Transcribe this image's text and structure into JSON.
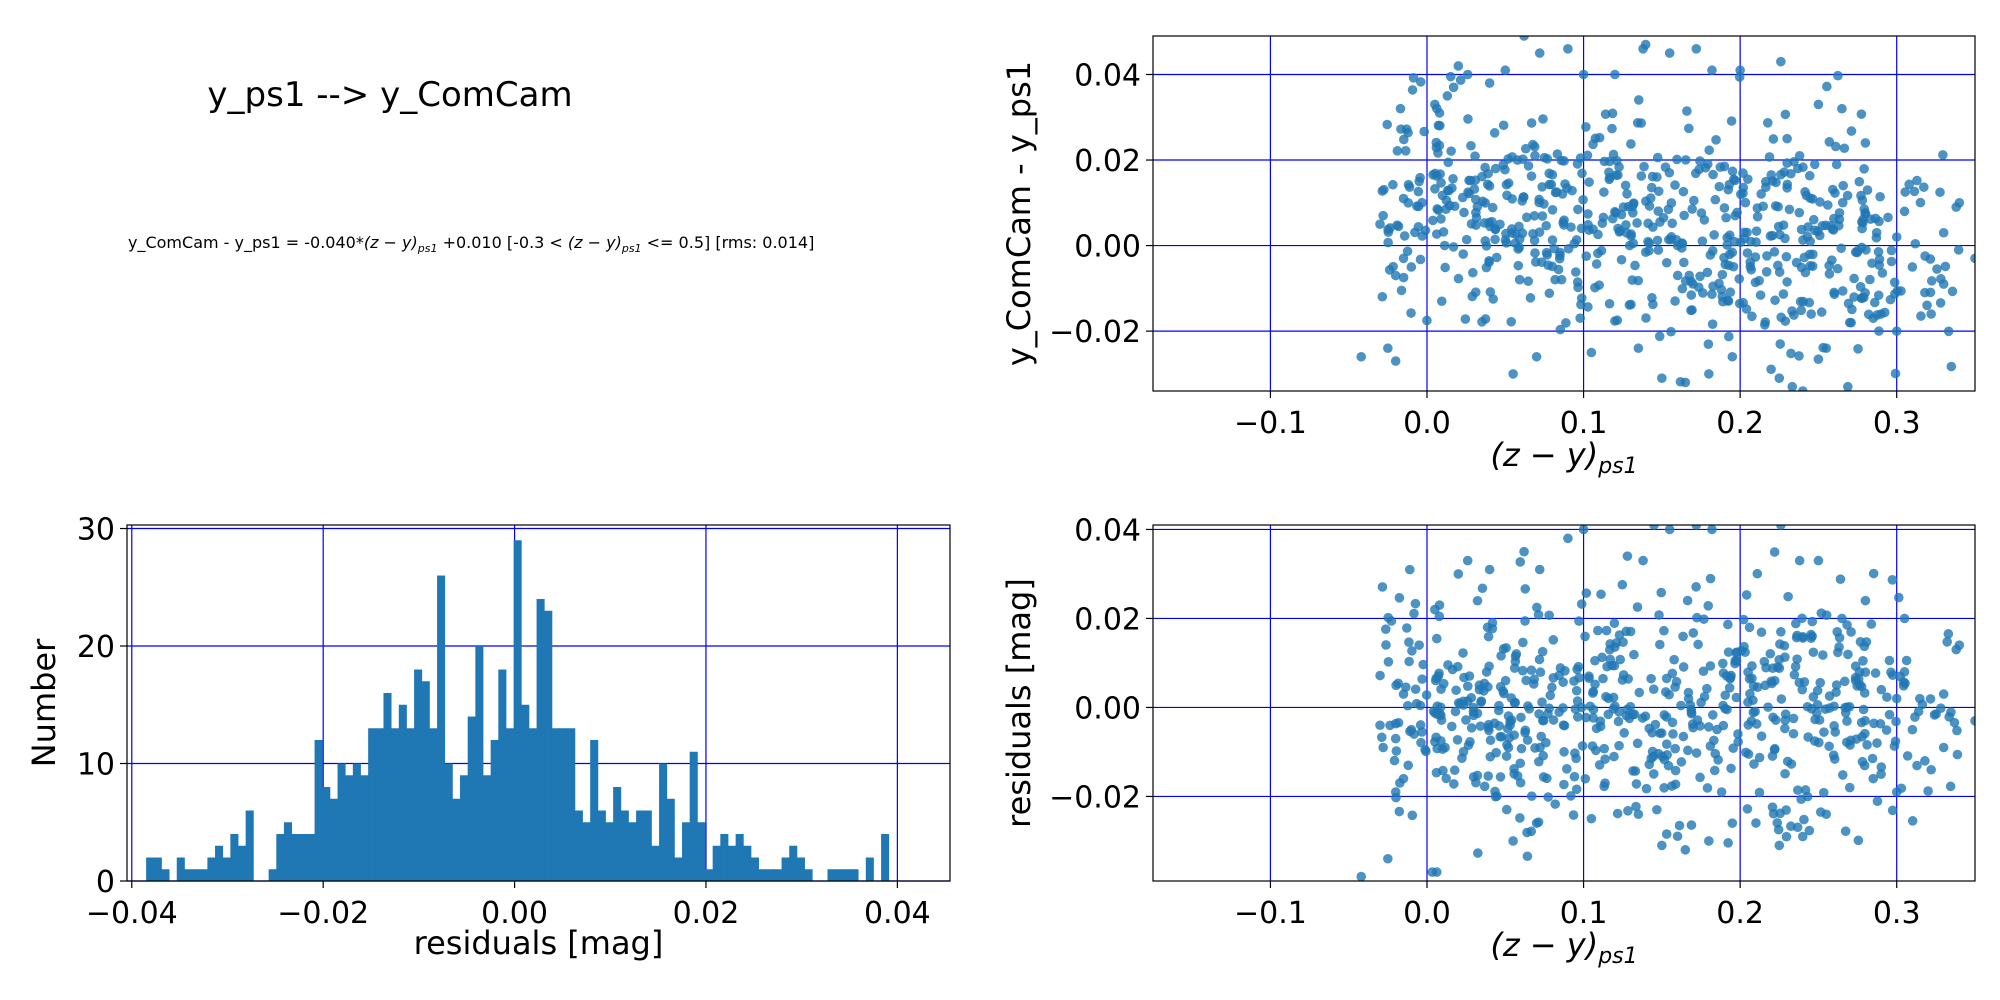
{
  "figure_title": "y_ps1 --> y_ComCam",
  "equation": {
    "lhs": "y_ComCam - y_ps1 = -0.040*",
    "color_term": "(z − y)",
    "color_sub": "ps1",
    "mid": " +0.010  [-0.3 < ",
    "color_term_2": "(z − y)",
    "color_sub_2": "ps1",
    "rhs": " <= 0.5]  [rms: 0.014]"
  },
  "colors": {
    "bar": "#1f77b4",
    "point": "#1f77b4",
    "grid": "#0000ff",
    "axis": "#000000"
  },
  "chart_data": [
    {
      "id": "color-scatter",
      "type": "scatter",
      "title": "",
      "xlabel_main": "(z − y)",
      "xlabel_sub": "ps1",
      "ylabel": "y_ComCam - y_ps1",
      "xlim": [
        -0.175,
        0.35
      ],
      "ylim": [
        -0.034,
        0.049
      ],
      "xticks": [
        -0.1,
        0.0,
        0.1,
        0.2,
        0.3
      ],
      "xtick_labels": [
        "−0.1",
        "0.0",
        "0.1",
        "0.2",
        "0.3"
      ],
      "yticks": [
        -0.02,
        0.0,
        0.02,
        0.04
      ],
      "ytick_labels": [
        "−0.02",
        "0.00",
        "0.02",
        "0.04"
      ],
      "grid": true,
      "n_points": 700,
      "points": [
        [
          -0.042,
          -0.026
        ],
        [
          -0.025,
          -0.024
        ],
        [
          -0.02,
          -0.027
        ],
        [
          -0.03,
          0.005
        ],
        [
          -0.028,
          0.007
        ],
        [
          -0.02,
          -0.007
        ],
        [
          -0.015,
          -0.003
        ],
        [
          -0.01,
          -0.005
        ],
        [
          -0.012,
          0.01
        ],
        [
          -0.005,
          0.015
        ],
        [
          0.005,
          0.033
        ],
        [
          0.008,
          0.031
        ],
        [
          0.013,
          0.035
        ],
        [
          0.017,
          0.037
        ],
        [
          0.02,
          0.042
        ],
        [
          0.026,
          0.04
        ],
        [
          0.04,
          0.038
        ],
        [
          0.05,
          0.041
        ],
        [
          0.062,
          0.049
        ],
        [
          0.072,
          0.045
        ],
        [
          0.09,
          0.046
        ],
        [
          0.1,
          0.04
        ],
        [
          0.12,
          0.04
        ],
        [
          0.138,
          0.046
        ],
        [
          0.155,
          0.045
        ],
        [
          0.172,
          0.046
        ],
        [
          0.182,
          0.041
        ],
        [
          0.2,
          0.041
        ],
        [
          0.226,
          0.043
        ],
        [
          0.055,
          -0.03
        ],
        [
          0.07,
          -0.026
        ],
        [
          0.105,
          -0.025
        ],
        [
          0.135,
          -0.024
        ],
        [
          0.15,
          -0.031
        ],
        [
          0.165,
          -0.032
        ],
        [
          0.18,
          -0.03
        ],
        [
          0.195,
          -0.026
        ],
        [
          0.225,
          -0.031
        ],
        [
          0.24,
          -0.034
        ],
        [
          0.255,
          -0.024
        ],
        [
          0.27,
          -0.018
        ],
        [
          0.285,
          -0.017
        ],
        [
          0.29,
          -0.016
        ],
        [
          0.3,
          0.002
        ],
        [
          0.305,
          0.008
        ],
        [
          0.31,
          -0.005
        ],
        [
          0.318,
          -0.011
        ],
        [
          0.322,
          -0.016
        ],
        [
          0.33,
          -0.009
        ],
        [
          0.338,
          0.009
        ],
        [
          0.34,
          0.01
        ],
        [
          0.35,
          -0.003
        ],
        [
          0.33,
          0.003
        ],
        [
          0.3,
          -0.02
        ],
        [
          0.28,
          0.024
        ],
        [
          0.265,
          0.032
        ],
        [
          0.25,
          0.033
        ],
        [
          0.238,
          0.021
        ],
        [
          0.23,
          0.025
        ],
        [
          -0.015,
          0.011
        ]
      ]
    },
    {
      "id": "residual-histogram",
      "type": "bar",
      "title": "",
      "xlabel": "residuals [mag]",
      "ylabel": "Number",
      "xlim": [
        -0.0405,
        0.0455
      ],
      "ylim": [
        0,
        30.3
      ],
      "xticks": [
        -0.04,
        -0.02,
        0.0,
        0.02,
        0.04
      ],
      "xtick_labels": [
        "−0.04",
        "−0.02",
        "0.00",
        "0.02",
        "0.04"
      ],
      "yticks": [
        0,
        10,
        20,
        30
      ],
      "ytick_labels": [
        "0",
        "10",
        "20",
        "30"
      ],
      "grid": true,
      "bin_start": -0.0385,
      "bin_width": 0.0008,
      "counts": [
        2,
        2,
        1,
        0,
        2,
        1,
        1,
        1,
        2,
        3,
        2,
        4,
        3,
        6,
        0,
        0,
        1,
        4,
        5,
        4,
        4,
        4,
        12,
        8,
        7,
        10,
        9,
        10,
        9,
        13,
        13,
        16,
        13,
        15,
        13,
        18,
        17,
        13,
        26,
        10,
        7,
        9,
        14,
        20,
        9,
        12,
        18,
        13,
        29,
        15,
        13,
        24,
        23,
        13,
        13,
        13,
        6,
        5,
        12,
        6,
        5,
        8,
        6,
        5,
        6,
        6,
        3,
        10,
        7,
        2,
        5,
        11,
        5,
        1,
        3,
        4,
        3,
        4,
        3,
        2,
        1,
        1,
        1,
        2,
        3,
        2,
        1,
        0,
        0,
        1,
        1,
        1,
        1,
        0,
        2,
        0,
        4
      ]
    },
    {
      "id": "residual-scatter",
      "type": "scatter",
      "title": "",
      "xlabel_main": "(z − y)",
      "xlabel_sub": "ps1",
      "ylabel": "residuals [mag]",
      "xlim": [
        -0.175,
        0.35
      ],
      "ylim": [
        -0.039,
        0.041
      ],
      "xticks": [
        -0.1,
        0.0,
        0.1,
        0.2,
        0.3
      ],
      "xtick_labels": [
        "−0.1",
        "0.0",
        "0.1",
        "0.2",
        "0.3"
      ],
      "yticks": [
        -0.02,
        0.0,
        0.02,
        0.04
      ],
      "ytick_labels": [
        "−0.02",
        "0.00",
        "0.02",
        "0.04"
      ],
      "grid": true,
      "n_points": 700,
      "points": [
        [
          -0.042,
          -0.038
        ],
        [
          -0.025,
          -0.034
        ],
        [
          -0.02,
          -0.019
        ],
        [
          -0.03,
          -0.004
        ],
        [
          -0.028,
          -0.009
        ],
        [
          -0.02,
          -0.007
        ],
        [
          -0.015,
          0.003
        ],
        [
          -0.01,
          -0.005
        ],
        [
          -0.012,
          -0.013
        ],
        [
          -0.005,
          0.014
        ],
        [
          0.005,
          0.022
        ],
        [
          0.008,
          0.023
        ],
        [
          0.02,
          0.03
        ],
        [
          0.026,
          0.033
        ],
        [
          0.04,
          0.031
        ],
        [
          0.062,
          0.035
        ],
        [
          0.072,
          0.031
        ],
        [
          0.09,
          0.038
        ],
        [
          0.1,
          0.04
        ],
        [
          0.128,
          0.034
        ],
        [
          0.138,
          0.033
        ],
        [
          0.145,
          0.041
        ],
        [
          0.155,
          0.04
        ],
        [
          0.172,
          0.041
        ],
        [
          0.182,
          0.04
        ],
        [
          0.226,
          0.041
        ],
        [
          0.238,
          0.033
        ],
        [
          0.25,
          0.033
        ],
        [
          0.055,
          -0.03
        ],
        [
          0.07,
          -0.026
        ],
        [
          0.105,
          -0.025
        ],
        [
          0.135,
          -0.024
        ],
        [
          0.15,
          -0.031
        ],
        [
          0.165,
          -0.032
        ],
        [
          0.18,
          -0.03
        ],
        [
          0.195,
          -0.026
        ],
        [
          0.225,
          -0.031
        ],
        [
          0.24,
          -0.029
        ],
        [
          0.255,
          -0.024
        ],
        [
          0.27,
          -0.018
        ],
        [
          0.285,
          -0.016
        ],
        [
          0.29,
          -0.015
        ],
        [
          0.3,
          0.002
        ],
        [
          0.305,
          0.008
        ],
        [
          0.31,
          -0.005
        ],
        [
          0.318,
          -0.012
        ],
        [
          0.322,
          -0.014
        ],
        [
          0.33,
          -0.009
        ],
        [
          0.338,
          0.013
        ],
        [
          0.34,
          0.014
        ],
        [
          0.35,
          -0.003
        ],
        [
          0.33,
          0.003
        ],
        [
          0.3,
          -0.019
        ],
        [
          0.28,
          0.024
        ],
        [
          0.265,
          0.02
        ],
        [
          0.262,
          0.017
        ],
        [
          0.246,
          0.016
        ],
        [
          0.226,
          0.017
        ],
        [
          0.206,
          0.018
        ],
        [
          -0.015,
          -0.016
        ]
      ]
    }
  ]
}
